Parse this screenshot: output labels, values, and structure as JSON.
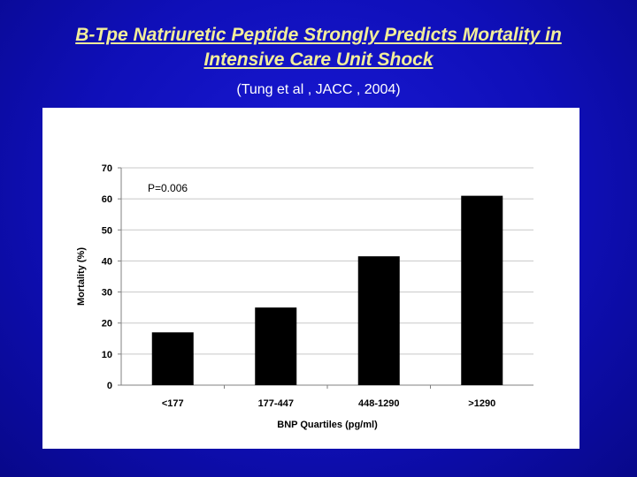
{
  "slide": {
    "title_line1": "B-Tpe Natriuretic Peptide Strongly Predicts Mortality in",
    "title_line2": "Intensive Care Unit Shock",
    "subtitle": "(Tung et al , JACC , 2004)"
  },
  "colors": {
    "background": "#1010c0",
    "title": "#f2ee9a",
    "subtitle": "#ffffff",
    "bars": "#000000"
  },
  "chart_data": {
    "type": "bar",
    "categories": [
      "<177",
      "177-447",
      "448-1290",
      ">1290"
    ],
    "values": [
      17,
      25,
      41.5,
      61
    ],
    "xlabel": "BNP Quartiles (pg/ml)",
    "ylabel": "Mortality (%)",
    "ylim": [
      0,
      70
    ],
    "yticks": [
      0,
      10,
      20,
      30,
      40,
      50,
      60,
      70
    ],
    "annotation": "P=0.006",
    "grid": true
  }
}
